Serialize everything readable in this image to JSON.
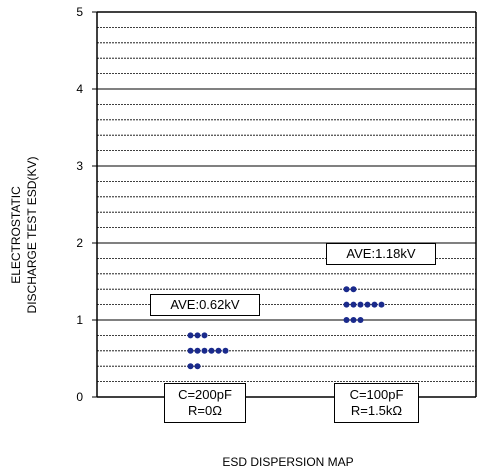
{
  "chart_data": {
    "type": "scatter",
    "title": "ESD DISPERSION MAP",
    "ylabel_line1": "ELECTROSTATIC",
    "ylabel_line2": "DISCHARGE TEST ESD(KV)",
    "ylim": [
      0,
      5
    ],
    "yticks": [
      "0",
      "1",
      "2",
      "3",
      "4",
      "5"
    ],
    "grid": "horizontal dotted every 0.2kV",
    "dot_color": "#1a2a8c",
    "groups": [
      {
        "label_line1": "C=200pF",
        "label_line2": "R=0Ω",
        "average_label": "AVE:0.62kV",
        "rows": [
          {
            "y": 0.4,
            "count": 2
          },
          {
            "y": 0.6,
            "count": 6
          },
          {
            "y": 0.8,
            "count": 3
          }
        ]
      },
      {
        "label_line1": "C=100pF",
        "label_line2": "R=1.5kΩ",
        "average_label": "AVE:1.18kV",
        "rows": [
          {
            "y": 1.0,
            "count": 3
          },
          {
            "y": 1.2,
            "count": 6
          },
          {
            "y": 1.4,
            "count": 2
          }
        ]
      }
    ]
  }
}
